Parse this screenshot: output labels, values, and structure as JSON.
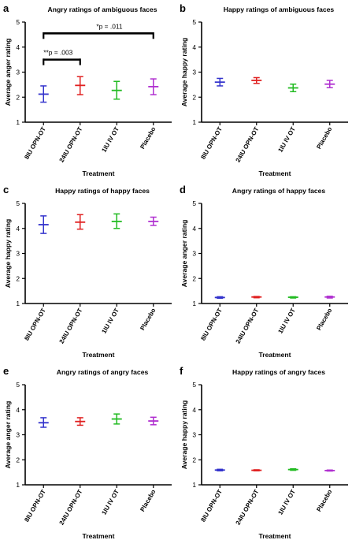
{
  "colors": [
    "#3333cc",
    "#e02020",
    "#22bb22",
    "#b030d0"
  ],
  "chart_data": [
    {
      "panel": "a",
      "type": "scatter",
      "title": "Angry ratings of ambiguous faces",
      "xlabel": "Treatment",
      "ylabel": "Average anger rating",
      "ylim": [
        1,
        5
      ],
      "yticks": [
        "1",
        "2",
        "3",
        "4",
        "5"
      ],
      "categories": [
        "8IU OPN-OT",
        "24IU OPN-OT",
        "1IU IV OT",
        "Placebo"
      ],
      "mean": [
        2.12,
        2.47,
        2.27,
        2.42
      ],
      "lower": [
        1.8,
        2.1,
        1.92,
        2.1
      ],
      "upper": [
        2.45,
        2.82,
        2.63,
        2.73
      ],
      "annotations": [
        {
          "text": "**p = .003",
          "from": 0,
          "to": 1,
          "y": 3.5
        },
        {
          "text": "*p = .011",
          "from": 0,
          "to": 3,
          "y": 4.55
        }
      ]
    },
    {
      "panel": "b",
      "type": "scatter",
      "title": "Happy ratings of ambiguous faces",
      "xlabel": "Treatment",
      "ylabel": "Average happy rating",
      "ylim": [
        1,
        5
      ],
      "yticks": [
        "1",
        "2",
        "3",
        "4",
        "5"
      ],
      "categories": [
        "8IU OPN-OT",
        "24IU OPN-OT",
        "1IU IV OT",
        "Placebo"
      ],
      "mean": [
        2.6,
        2.67,
        2.37,
        2.52
      ],
      "lower": [
        2.45,
        2.55,
        2.22,
        2.38
      ],
      "upper": [
        2.75,
        2.78,
        2.52,
        2.67
      ]
    },
    {
      "panel": "c",
      "type": "scatter",
      "title": "Happy ratings of happy faces",
      "xlabel": "Treatment",
      "ylabel": "Average happy rating",
      "ylim": [
        1,
        5
      ],
      "yticks": [
        "1",
        "2",
        "3",
        "4",
        "5"
      ],
      "categories": [
        "8IU OPN-OT",
        "24IU OPN-OT",
        "1IU IV OT",
        "Placebo"
      ],
      "mean": [
        4.15,
        4.25,
        4.28,
        4.28
      ],
      "lower": [
        3.8,
        3.97,
        4.0,
        4.12
      ],
      "upper": [
        4.5,
        4.55,
        4.58,
        4.45
      ]
    },
    {
      "panel": "d",
      "type": "scatter",
      "title": "Angry ratings of happy faces",
      "xlabel": "Treatment",
      "ylabel": "Average anger rating",
      "ylim": [
        1,
        5
      ],
      "yticks": [
        "1",
        "2",
        "3",
        "4",
        "5"
      ],
      "categories": [
        "8IU OPN-OT",
        "24IU OPN-OT",
        "1IU IV OT",
        "Placebo"
      ],
      "mean": [
        1.24,
        1.26,
        1.25,
        1.26
      ],
      "lower": [
        1.21,
        1.23,
        1.22,
        1.22
      ],
      "upper": [
        1.27,
        1.28,
        1.27,
        1.29
      ]
    },
    {
      "panel": "e",
      "type": "scatter",
      "title": "Angry ratings of angry faces",
      "xlabel": "Treatment",
      "ylabel": "Average anger rating",
      "ylim": [
        1,
        5
      ],
      "yticks": [
        "1",
        "2",
        "3",
        "4",
        "5"
      ],
      "categories": [
        "8IU OPN-OT",
        "24IU OPN-OT",
        "1IU IV OT",
        "Placebo"
      ],
      "mean": [
        3.48,
        3.53,
        3.63,
        3.55
      ],
      "lower": [
        3.3,
        3.38,
        3.43,
        3.4
      ],
      "upper": [
        3.68,
        3.68,
        3.83,
        3.7
      ]
    },
    {
      "panel": "f",
      "type": "scatter",
      "title": "Happy ratings of angry faces",
      "xlabel": "Treatment",
      "ylabel": "Average happy rating",
      "ylim": [
        1,
        5
      ],
      "yticks": [
        "1",
        "2",
        "3",
        "4",
        "5"
      ],
      "categories": [
        "8IU OPN-OT",
        "24IU OPN-OT",
        "1IU IV OT",
        "Placebo"
      ],
      "mean": [
        1.59,
        1.58,
        1.61,
        1.57
      ],
      "lower": [
        1.56,
        1.56,
        1.58,
        1.55
      ],
      "upper": [
        1.62,
        1.6,
        1.64,
        1.59
      ]
    }
  ]
}
